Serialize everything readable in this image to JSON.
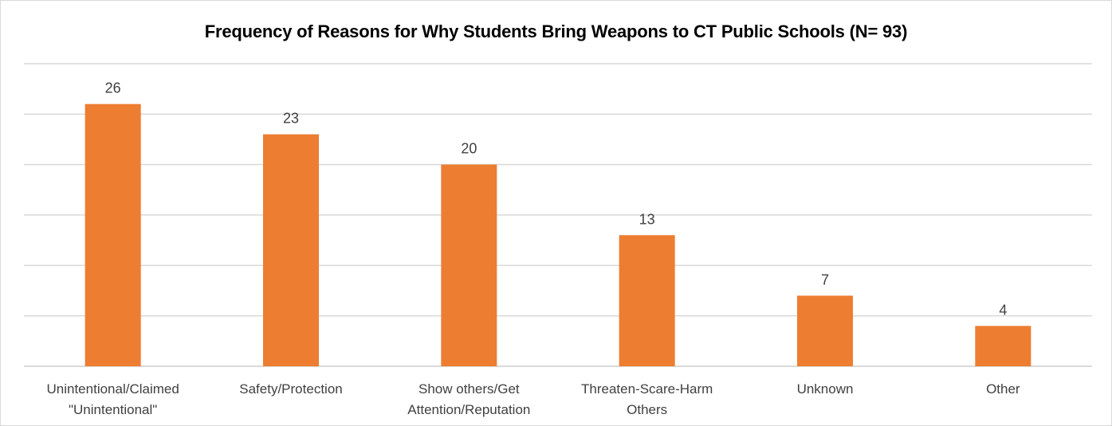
{
  "colors": {
    "bar": "#ed7d31",
    "grid": "#d9d9d9",
    "axis": "#d9d9d9",
    "text": "#404040"
  },
  "chart_data": {
    "type": "bar",
    "title": "Frequency of Reasons for Why Students Bring Weapons to CT Public Schools (N= 93)",
    "xlabel": "",
    "ylabel": "",
    "grid": true,
    "legend": "none",
    "categories": [
      [
        "Unintentional/Claimed",
        "\"Unintentional\""
      ],
      [
        "Safety/Protection"
      ],
      [
        "Show others/Get",
        "Attention/Reputation"
      ],
      [
        "Threaten-Scare-Harm",
        "Others"
      ],
      [
        "Unknown"
      ],
      [
        "Other"
      ]
    ],
    "values": [
      26,
      23,
      20,
      13,
      7,
      4
    ],
    "ylim": [
      0,
      30
    ],
    "gridlines": [
      5,
      10,
      15,
      20,
      25,
      30
    ]
  }
}
